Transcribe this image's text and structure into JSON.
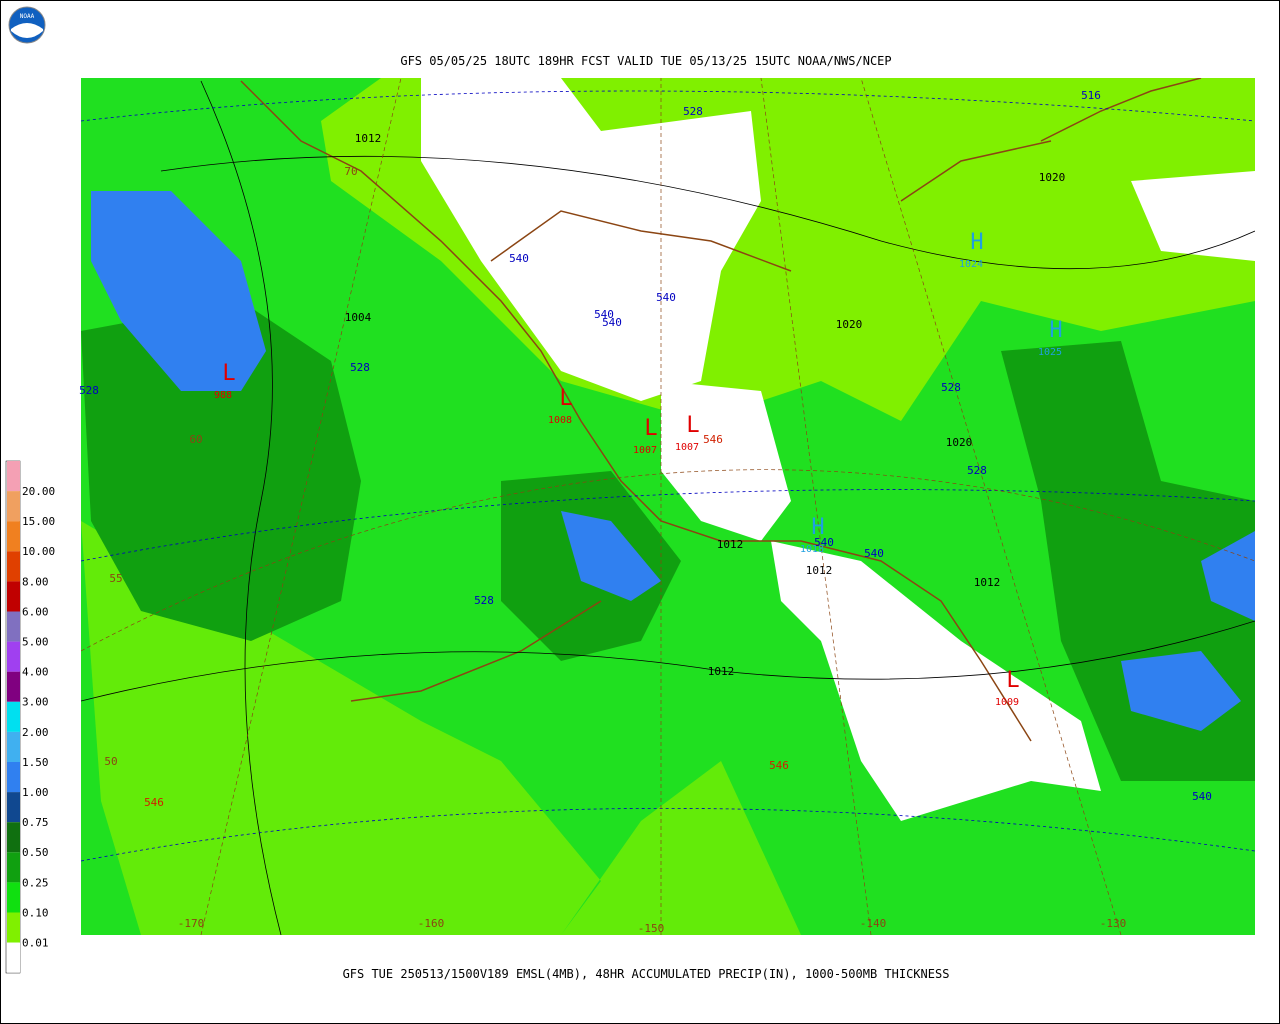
{
  "title": "GFS 05/05/25 18UTC 189HR FCST VALID TUE 05/13/25 15UTC NOAA/NWS/NCEP",
  "footer": "GFS TUE 250513/1500V189 EMSL(4MB), 48HR ACCUMULATED PRECIP(IN), 1000-500MB THICKNESS",
  "logo": "NOAA",
  "legend": {
    "labels": [
      "20.00",
      "15.00",
      "10.00",
      "8.00",
      "6.00",
      "5.00",
      "4.00",
      "3.00",
      "2.00",
      "1.50",
      "1.00",
      "0.75",
      "0.50",
      "0.25",
      "0.10",
      "0.01"
    ],
    "colors": [
      "#f4a0b4",
      "#f0a060",
      "#f08020",
      "#e04000",
      "#c00000",
      "#8070c0",
      "#a040f0",
      "#800080",
      "#00e0f0",
      "#40b0f0",
      "#3080f0",
      "#104890",
      "#107010",
      "#10a010",
      "#10e010",
      "#80f000",
      "#ffffff"
    ]
  },
  "map": {
    "thickness_labels": [
      "528",
      "516",
      "540",
      "540",
      "540",
      "540",
      "528",
      "528",
      "528",
      "528",
      "528",
      "540",
      "540",
      "540"
    ],
    "warm_thickness_labels": [
      "546",
      "546",
      "546"
    ],
    "pressure_labels": [
      "1012",
      "1020",
      "1004",
      "1020",
      "1020",
      "1012",
      "1012",
      "1012",
      "1012"
    ],
    "lows": [
      {
        "symbol": "L",
        "value": "988"
      },
      {
        "symbol": "L",
        "value": "1008"
      },
      {
        "symbol": "L",
        "value": "1007"
      },
      {
        "symbol": "L",
        "value": "1007"
      },
      {
        "symbol": "L",
        "value": "1009"
      }
    ],
    "highs": [
      {
        "symbol": "H",
        "value": "1024"
      },
      {
        "symbol": "H",
        "value": "1025"
      },
      {
        "symbol": "H",
        "value": "1018"
      }
    ],
    "grid_labels": [
      "70",
      "60",
      "55",
      "50",
      "-170",
      "-160",
      "-150",
      "-140",
      "-130"
    ]
  }
}
